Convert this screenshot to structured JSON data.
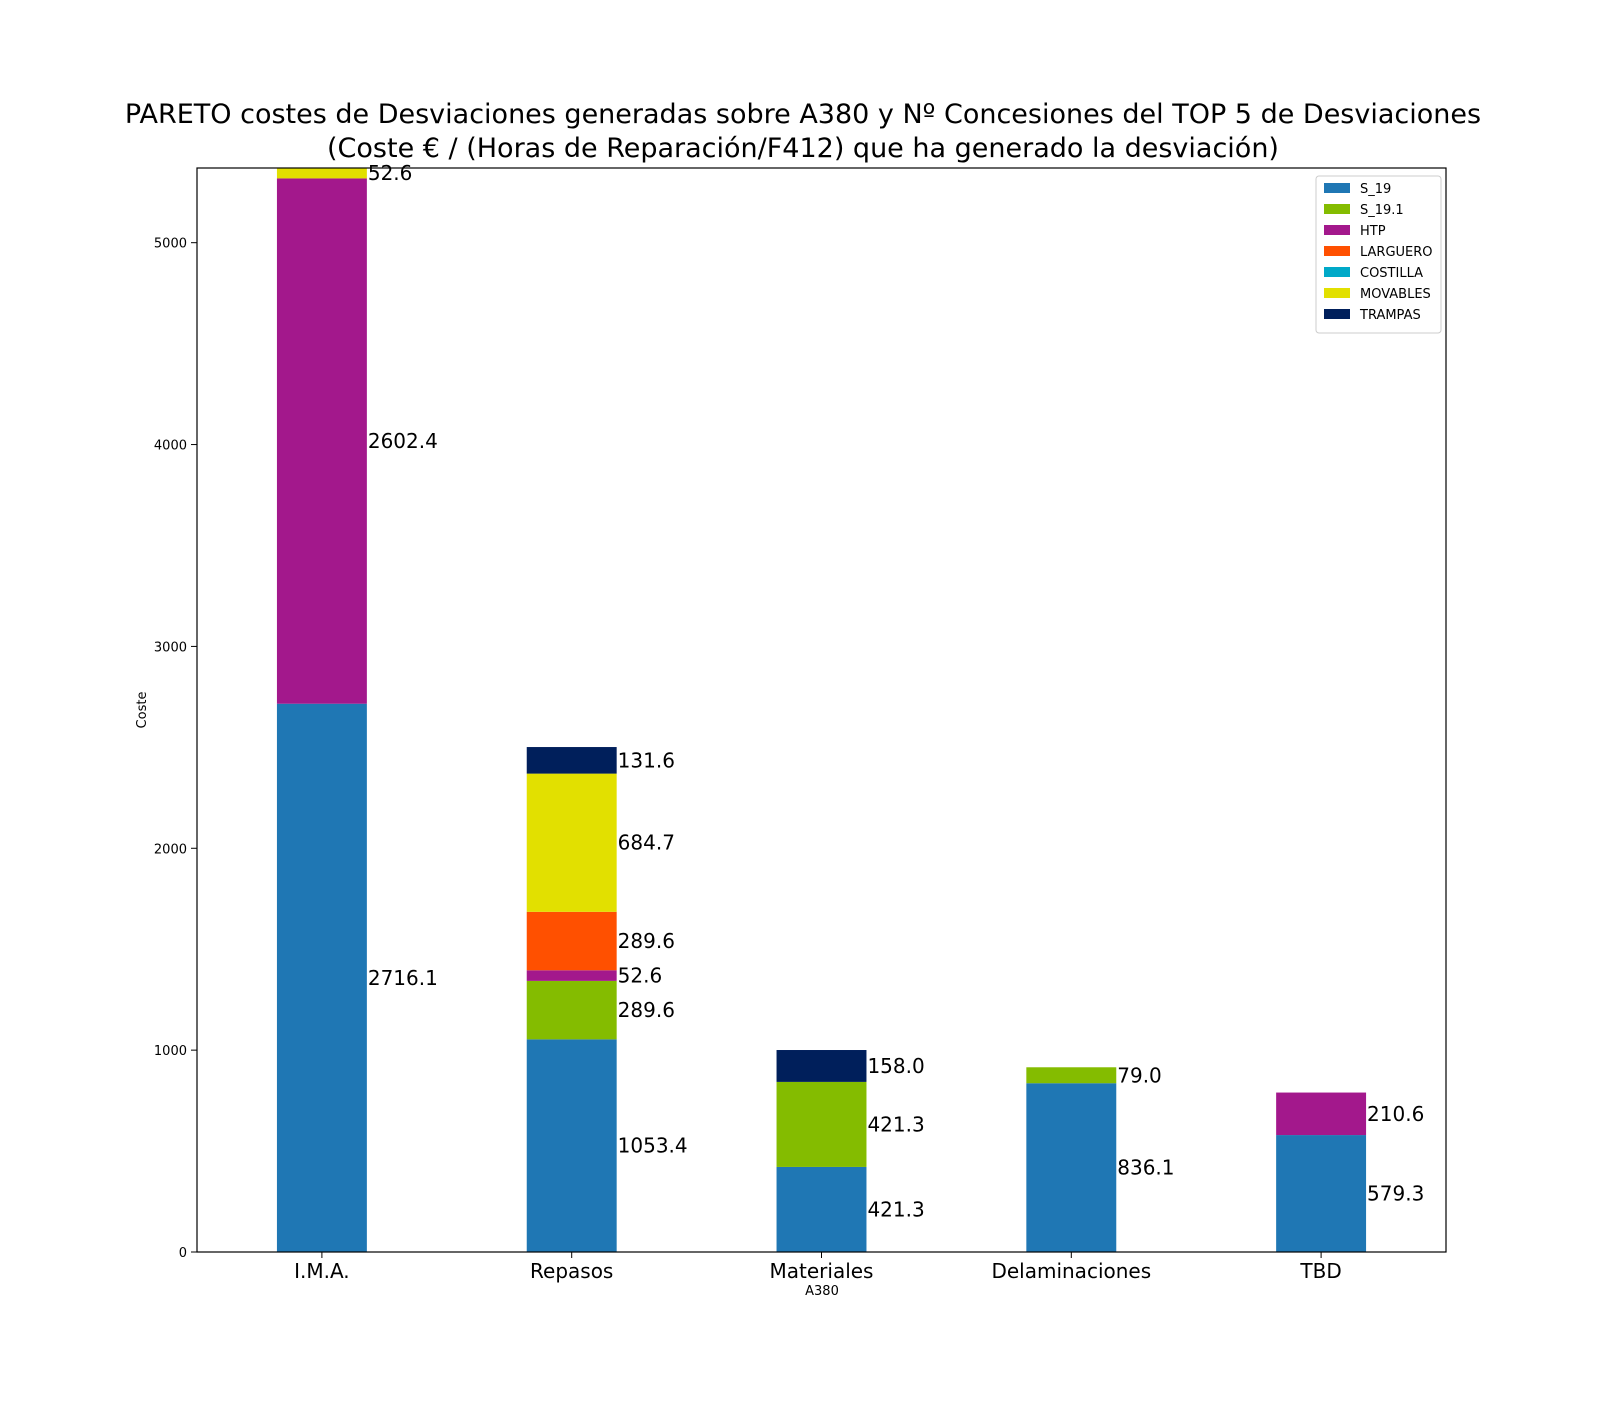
{
  "chart_data": {
    "type": "bar",
    "stacked": true,
    "title_lines": [
      "PARETO costes de Desviaciones  generadas sobre A380 y Nº Concesiones del TOP 5 de Desviaciones",
      "(Coste € / (Horas de Reparación/F412) que ha generado la desviación)"
    ],
    "xlabel": "A380",
    "ylabel": "Coste",
    "ylim": [
      0,
      5370
    ],
    "yticks": [
      0,
      1000,
      2000,
      3000,
      4000,
      5000
    ],
    "categories": [
      "I.M.A.",
      "Repasos",
      "Materiales",
      "Delaminaciones",
      "TBD"
    ],
    "series": [
      {
        "name": "S_19",
        "color": "#1f77b4",
        "values": [
          2716.1,
          1053.4,
          421.3,
          836.1,
          579.3
        ]
      },
      {
        "name": "S_19.1",
        "color": "#84bc00",
        "values": [
          0,
          289.6,
          421.3,
          79.0,
          0
        ]
      },
      {
        "name": "HTP",
        "color": "#a3188c",
        "values": [
          2602.4,
          52.6,
          0,
          0,
          210.6
        ]
      },
      {
        "name": "LARGUERO",
        "color": "#ff5000",
        "values": [
          0,
          289.6,
          0,
          0,
          0
        ]
      },
      {
        "name": "COSTILLA",
        "color": "#00a9c8",
        "values": [
          0,
          0,
          0,
          0,
          0
        ]
      },
      {
        "name": "MOVABLES",
        "color": "#e2e000",
        "values": [
          52.6,
          684.7,
          0,
          0,
          0
        ]
      },
      {
        "name": "TRAMPAS",
        "color": "#001f5b",
        "values": [
          0,
          131.6,
          158.0,
          0,
          0
        ]
      }
    ],
    "legend_position": "top-right",
    "grid": false
  }
}
